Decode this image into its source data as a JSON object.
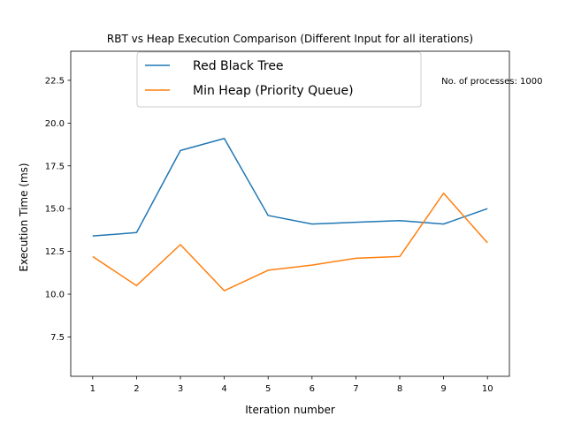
{
  "chart_data": {
    "type": "line",
    "title": "RBT vs Heap Execution Comparison (Different Input for all iterations)",
    "xlabel": "Iteration number",
    "ylabel": "Execution Time (ms)",
    "x": [
      1,
      2,
      3,
      4,
      5,
      6,
      7,
      8,
      9,
      10
    ],
    "xticks": [
      1,
      2,
      3,
      4,
      5,
      6,
      7,
      8,
      9,
      10
    ],
    "yticks": [
      7.5,
      10.0,
      12.5,
      15.0,
      17.5,
      20.0,
      22.5
    ],
    "xlim": [
      0.5,
      10.5
    ],
    "ylim": [
      5.2,
      24.2
    ],
    "grid": false,
    "legend_placement": "upper-center",
    "series": [
      {
        "name": "Red Black Tree",
        "color": "#1f77b4",
        "values": [
          13.4,
          13.6,
          18.4,
          19.1,
          14.6,
          14.1,
          14.2,
          14.3,
          14.1,
          15.0
        ]
      },
      {
        "name": "Min Heap (Priority Queue)",
        "color": "#ff7f0e",
        "values": [
          12.2,
          10.5,
          12.9,
          10.2,
          11.4,
          11.7,
          12.1,
          12.2,
          15.9,
          13.0
        ]
      }
    ],
    "annotations": [
      {
        "text": "No. of processes: 1000",
        "x": 8.95,
        "y": 22.5
      }
    ]
  }
}
